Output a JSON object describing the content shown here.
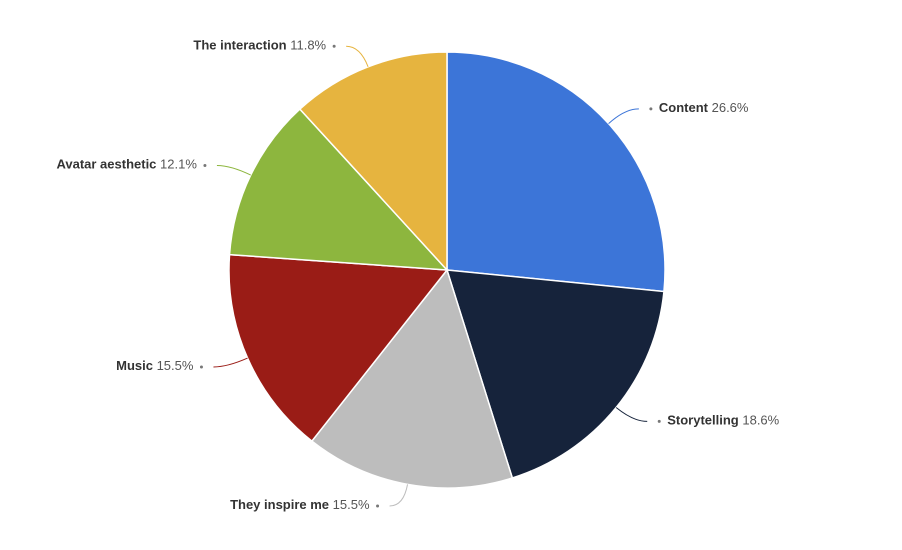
{
  "chart_data": {
    "type": "pie",
    "categories": [
      "Content",
      "Storytelling",
      "They inspire me",
      "Music",
      "Avatar aesthetic",
      "The interaction"
    ],
    "values": [
      26.6,
      18.6,
      15.5,
      15.5,
      12.1,
      11.8
    ],
    "value_labels": [
      "26.6%",
      "18.6%",
      "15.5%",
      "15.5%",
      "12.1%",
      "11.8%"
    ],
    "colors": [
      "#3c75d8",
      "#16233b",
      "#bdbdbd",
      "#9a1c16",
      "#8db63e",
      "#e6b43f"
    ]
  }
}
